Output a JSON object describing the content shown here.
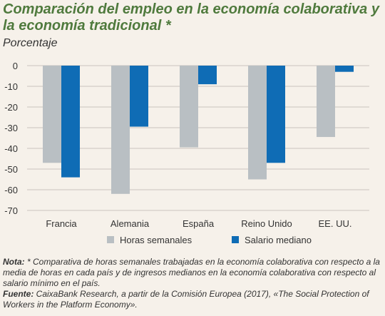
{
  "header": {
    "title": "Comparación del empleo en la economía colaborativa y la economía tradicional *",
    "subtitle": "Porcentaje"
  },
  "colors": {
    "background": "#f6f1ea",
    "title": "#4f7a3d",
    "series_hours": "#b9bfc3",
    "series_salary": "#0f6cb5",
    "grid": "#c9c4bd"
  },
  "chart_data": {
    "type": "bar",
    "categories": [
      "Francia",
      "Alemania",
      "España",
      "Reino Unido",
      "EE. UU."
    ],
    "series": [
      {
        "name": "Horas semanales",
        "values": [
          -47,
          -62,
          -39.5,
          -55,
          -34.5
        ]
      },
      {
        "name": "Salario mediano",
        "values": [
          -54,
          -29.5,
          -9,
          -47,
          -3
        ]
      }
    ],
    "y_ticks": [
      "0",
      "-10",
      "-20",
      "-30",
      "-40",
      "-50",
      "-60",
      "-70"
    ],
    "ylim": [
      -70,
      0
    ],
    "grid": true,
    "legend_position": "bottom"
  },
  "notes": {
    "nota_label": "Nota:",
    "nota_text": " * Comparativa de horas semanales trabajadas en la economía colaborativa con respecto a la media de horas en cada país y de ingresos medianos en la economía colaborativa con respecto al salario mínimo en el país.",
    "fuente_label": "Fuente:",
    "fuente_text": " CaixaBank Research, a partir de la Comisión Europea (2017), «The Social Protection of Workers in the Platform Economy»."
  }
}
